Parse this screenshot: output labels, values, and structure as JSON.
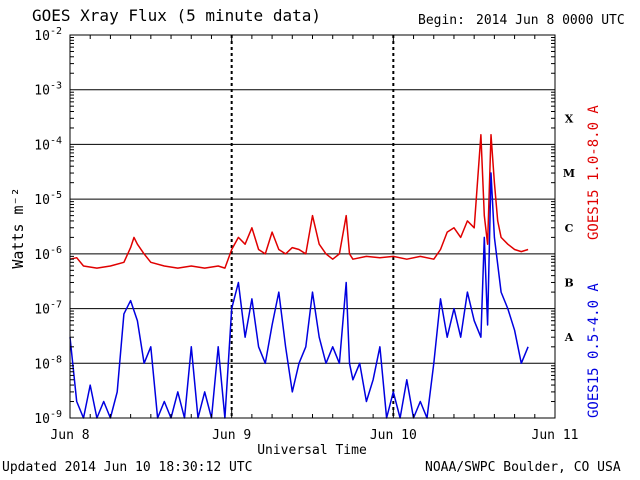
{
  "header": {
    "title": "GOES Xray Flux (5 minute data)",
    "begin_label": "Begin:",
    "begin_value": "2014 Jun 8 0000 UTC"
  },
  "footer": {
    "updated": "Updated 2014 Jun 10 18:30:12 UTC",
    "credit": "NOAA/SWPC Boulder, CO USA"
  },
  "chart_data": {
    "type": "line",
    "title": "GOES Xray Flux (5 minute data)",
    "xlabel": "Universal Time",
    "ylabel": "Watts m⁻²",
    "y_scale": "log",
    "ylim": [
      1e-09,
      0.01
    ],
    "xlim_hours": [
      0,
      72
    ],
    "x_ticks": [
      {
        "hour": 0,
        "label": "Jun 8"
      },
      {
        "hour": 24,
        "label": "Jun 9"
      },
      {
        "hour": 48,
        "label": "Jun 10"
      },
      {
        "hour": 72,
        "label": "Jun 11"
      }
    ],
    "y_ticks": [
      {
        "value": 1e-09,
        "mant": "10",
        "exp": "-9"
      },
      {
        "value": 1e-08,
        "mant": "10",
        "exp": "-8"
      },
      {
        "value": 1e-07,
        "mant": "10",
        "exp": "-7"
      },
      {
        "value": 1e-06,
        "mant": "10",
        "exp": "-6"
      },
      {
        "value": 1e-05,
        "mant": "10",
        "exp": "-5"
      },
      {
        "value": 0.0001,
        "mant": "10",
        "exp": "-4"
      },
      {
        "value": 0.001,
        "mant": "10",
        "exp": "-3"
      },
      {
        "value": 0.01,
        "mant": "10",
        "exp": "-2"
      }
    ],
    "flare_classes": [
      {
        "label": "X",
        "value": 0.0003
      },
      {
        "label": "M",
        "value": 3e-05
      },
      {
        "label": "C",
        "value": 3e-06
      },
      {
        "label": "B",
        "value": 3e-07
      },
      {
        "label": "A",
        "value": 3e-08
      }
    ],
    "grid": "horizontal at each decade; dashed vertical at day boundaries",
    "series": [
      {
        "name": "GOES15 1.0-8.0 A",
        "color": "#e00000",
        "points": [
          [
            0,
            8e-07
          ],
          [
            1,
            8.5e-07
          ],
          [
            2,
            6e-07
          ],
          [
            4,
            5.5e-07
          ],
          [
            6,
            6e-07
          ],
          [
            8,
            7e-07
          ],
          [
            9,
            1.3e-06
          ],
          [
            9.5,
            2e-06
          ],
          [
            10,
            1.5e-06
          ],
          [
            11,
            1e-06
          ],
          [
            12,
            7e-07
          ],
          [
            14,
            6e-07
          ],
          [
            16,
            5.5e-07
          ],
          [
            18,
            6e-07
          ],
          [
            20,
            5.5e-07
          ],
          [
            22,
            6e-07
          ],
          [
            23,
            5.5e-07
          ],
          [
            24,
            1.2e-06
          ],
          [
            25,
            2e-06
          ],
          [
            26,
            1.5e-06
          ],
          [
            27,
            3e-06
          ],
          [
            28,
            1.2e-06
          ],
          [
            29,
            1e-06
          ],
          [
            30,
            2.5e-06
          ],
          [
            31,
            1.2e-06
          ],
          [
            32,
            1e-06
          ],
          [
            33,
            1.3e-06
          ],
          [
            34,
            1.2e-06
          ],
          [
            35,
            1e-06
          ],
          [
            36,
            5e-06
          ],
          [
            37,
            1.5e-06
          ],
          [
            38,
            1e-06
          ],
          [
            39,
            8e-07
          ],
          [
            40,
            1e-06
          ],
          [
            41,
            5e-06
          ],
          [
            41.5,
            1e-06
          ],
          [
            42,
            8e-07
          ],
          [
            44,
            9e-07
          ],
          [
            46,
            8.5e-07
          ],
          [
            48,
            9e-07
          ],
          [
            50,
            8e-07
          ],
          [
            52,
            9e-07
          ],
          [
            54,
            8e-07
          ],
          [
            55,
            1.2e-06
          ],
          [
            56,
            2.5e-06
          ],
          [
            57,
            3e-06
          ],
          [
            58,
            2e-06
          ],
          [
            59,
            4e-06
          ],
          [
            60,
            3e-06
          ],
          [
            61,
            0.00015
          ],
          [
            61.5,
            5e-06
          ],
          [
            62,
            1.5e-06
          ],
          [
            62.5,
            0.00015
          ],
          [
            63,
            2e-05
          ],
          [
            63.5,
            4e-06
          ],
          [
            64,
            2e-06
          ],
          [
            65,
            1.5e-06
          ],
          [
            66,
            1.2e-06
          ],
          [
            67,
            1.1e-06
          ],
          [
            68,
            1.2e-06
          ]
        ]
      },
      {
        "name": "GOES15 0.5-4.0 A",
        "color": "#0000e0",
        "points": [
          [
            0,
            3e-08
          ],
          [
            1,
            2e-09
          ],
          [
            2,
            1e-09
          ],
          [
            3,
            4e-09
          ],
          [
            4,
            1e-09
          ],
          [
            5,
            2e-09
          ],
          [
            6,
            1e-09
          ],
          [
            7,
            3e-09
          ],
          [
            8,
            8e-08
          ],
          [
            9,
            1.4e-07
          ],
          [
            10,
            6e-08
          ],
          [
            11,
            1e-08
          ],
          [
            12,
            2e-08
          ],
          [
            13,
            1e-09
          ],
          [
            14,
            2e-09
          ],
          [
            15,
            1e-09
          ],
          [
            16,
            3e-09
          ],
          [
            17,
            1e-09
          ],
          [
            18,
            2e-08
          ],
          [
            19,
            1e-09
          ],
          [
            20,
            3e-09
          ],
          [
            21,
            1e-09
          ],
          [
            22,
            2e-08
          ],
          [
            23,
            1e-09
          ],
          [
            24,
            1e-07
          ],
          [
            25,
            3e-07
          ],
          [
            26,
            3e-08
          ],
          [
            27,
            1.5e-07
          ],
          [
            28,
            2e-08
          ],
          [
            29,
            1e-08
          ],
          [
            30,
            5e-08
          ],
          [
            31,
            2e-07
          ],
          [
            32,
            2e-08
          ],
          [
            33,
            3e-09
          ],
          [
            34,
            1e-08
          ],
          [
            35,
            2e-08
          ],
          [
            36,
            2e-07
          ],
          [
            37,
            3e-08
          ],
          [
            38,
            1e-08
          ],
          [
            39,
            2e-08
          ],
          [
            40,
            1e-08
          ],
          [
            41,
            3e-07
          ],
          [
            41.5,
            1e-08
          ],
          [
            42,
            5e-09
          ],
          [
            43,
            1e-08
          ],
          [
            44,
            2e-09
          ],
          [
            45,
            5e-09
          ],
          [
            46,
            2e-08
          ],
          [
            47,
            1e-09
          ],
          [
            48,
            3e-09
          ],
          [
            49,
            1e-09
          ],
          [
            50,
            5e-09
          ],
          [
            51,
            1e-09
          ],
          [
            52,
            2e-09
          ],
          [
            53,
            1e-09
          ],
          [
            54,
            1e-08
          ],
          [
            55,
            1.5e-07
          ],
          [
            56,
            3e-08
          ],
          [
            57,
            1e-07
          ],
          [
            58,
            3e-08
          ],
          [
            59,
            2e-07
          ],
          [
            60,
            6e-08
          ],
          [
            61,
            3e-08
          ],
          [
            61.5,
            2e-06
          ],
          [
            62,
            5e-08
          ],
          [
            62.5,
            3e-05
          ],
          [
            63,
            2e-06
          ],
          [
            64,
            2e-07
          ],
          [
            65,
            1e-07
          ],
          [
            66,
            4e-08
          ],
          [
            67,
            1e-08
          ],
          [
            68,
            2e-08
          ]
        ]
      }
    ]
  }
}
